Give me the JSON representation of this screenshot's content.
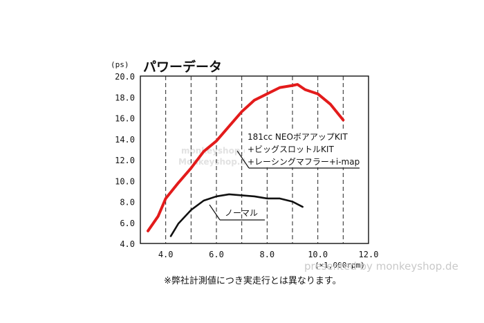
{
  "chart_data": {
    "type": "line",
    "title": "パワーデータ",
    "ylabel": "(ps)",
    "xlabel": "(×1,000rpm)",
    "xlim": [
      3.0,
      12.0
    ],
    "ylim": [
      4.0,
      20.0
    ],
    "xticks": [
      "4.0",
      "6.0",
      "8.0",
      "10.0",
      "12.0"
    ],
    "yticks": [
      "4.0",
      "6.0",
      "8.0",
      "10.0",
      "12.0",
      "14.0",
      "16.0",
      "18.0",
      "20.0"
    ],
    "grid": "vertical dashed",
    "series": [
      {
        "name": "181cc NEOボアアップKIT+ビッグスロットルKIT+レーシングマフラー+i-map",
        "color": "#e31b1b",
        "x": [
          3.3,
          3.7,
          4.0,
          4.5,
          5.0,
          5.5,
          6.0,
          6.5,
          7.0,
          7.5,
          8.0,
          8.5,
          9.0,
          9.2,
          9.5,
          10.0,
          10.5,
          11.0
        ],
        "y": [
          5.2,
          6.6,
          8.3,
          9.8,
          11.2,
          12.8,
          13.8,
          15.2,
          16.6,
          17.7,
          18.3,
          18.9,
          19.1,
          19.2,
          18.7,
          18.3,
          17.3,
          15.8
        ]
      },
      {
        "name": "ノーマル",
        "color": "#111111",
        "x": [
          4.2,
          4.5,
          5.0,
          5.5,
          6.0,
          6.5,
          7.0,
          7.5,
          8.0,
          8.5,
          9.0,
          9.4
        ],
        "y": [
          4.7,
          5.9,
          7.2,
          8.1,
          8.5,
          8.7,
          8.6,
          8.5,
          8.3,
          8.3,
          8.0,
          7.5
        ]
      }
    ],
    "annotations": {
      "red_lines": [
        "181cc NEOボアアップKIT",
        "+ビッグスロットルKIT",
        "+レーシングマフラー+i-map"
      ],
      "black_label": "ノーマル"
    }
  },
  "footnote": "※弊社計測値につき実走行とは異なります。",
  "watermark": "presented by monkeyshop.de"
}
